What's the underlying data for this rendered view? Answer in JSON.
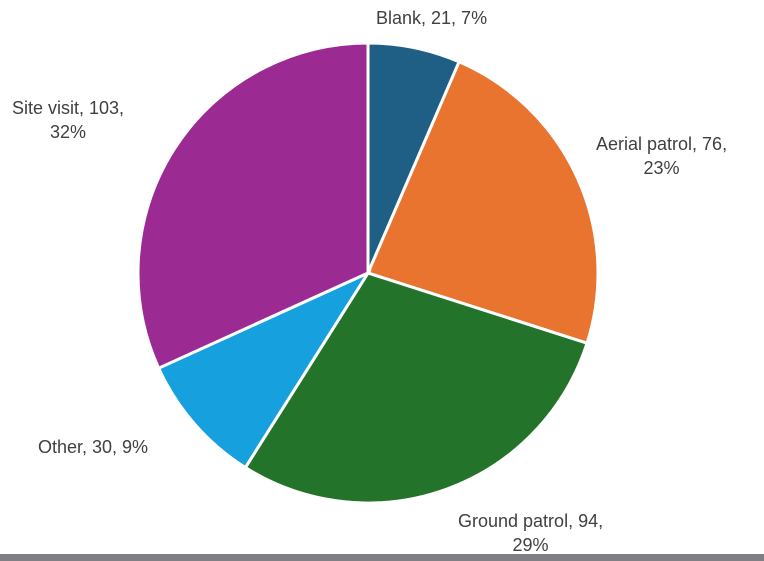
{
  "chart_data": {
    "type": "pie",
    "slices": [
      {
        "name": "Blank",
        "value": 21,
        "percent": "7%",
        "color": "#1f5f86"
      },
      {
        "name": "Aerial patrol",
        "value": 76,
        "percent": "23%",
        "color": "#e8742f"
      },
      {
        "name": "Ground patrol",
        "value": 94,
        "percent": "29%",
        "color": "#23742a"
      },
      {
        "name": "Other",
        "value": 30,
        "percent": "9%",
        "color": "#16a0de"
      },
      {
        "name": "Site visit",
        "value": 103,
        "percent": "32%",
        "color": "#9c2a93"
      }
    ],
    "labels": {
      "blank": {
        "line1": "Blank, 21, 7%"
      },
      "aerial": {
        "line1": "Aerial patrol, 76,",
        "line2": "23%"
      },
      "ground": {
        "line1": "Ground patrol, 94,",
        "line2": "29%"
      },
      "other": {
        "line1": "Other, 30, 9%"
      },
      "site": {
        "line1": "Site visit, 103,",
        "line2": "32%"
      }
    }
  }
}
